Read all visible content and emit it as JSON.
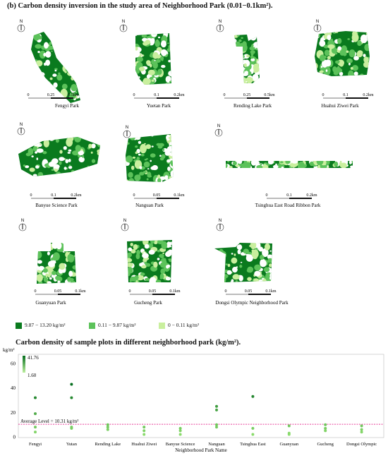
{
  "section_b_title": "(b) Carbon density inversion in the study area of Neighborhood Park (0.01−0.1km²).",
  "north_label": "N",
  "parks": [
    {
      "name": "Fengyi Park",
      "scale_ticks": [
        "0",
        "0.25",
        "0.5km"
      ]
    },
    {
      "name": "Yuetan Park",
      "scale_ticks": [
        "0",
        "0.1",
        "0.2km"
      ]
    },
    {
      "name": "Rending Lake Park",
      "scale_ticks": [
        "0",
        "0.25",
        "0.5km"
      ]
    },
    {
      "name": "Huahui Ziwei Park",
      "scale_ticks": [
        "0",
        "0.1",
        "0.2km"
      ]
    },
    {
      "name": "Banyue Science Park",
      "scale_ticks": [
        "0",
        "0.1",
        "0.2km"
      ]
    },
    {
      "name": "Nanguan Park",
      "scale_ticks": [
        "0",
        "0.05",
        "0.1km"
      ]
    },
    {
      "name": "Tsinghua East Road Ribbon Park",
      "scale_ticks": [
        "0",
        "0.1",
        "0.2km"
      ]
    },
    {
      "name": "Guanyuan Park",
      "scale_ticks": [
        "0",
        "0.05",
        "0.1km"
      ]
    },
    {
      "name": "Gucheng Park",
      "scale_ticks": [
        "0",
        "0.05",
        "0.1km"
      ]
    },
    {
      "name": "Dongsi Olympic Neighborhood Park",
      "scale_ticks": [
        "0",
        "0.05",
        "0.1km"
      ]
    }
  ],
  "map_legend": [
    {
      "label": "9.87 − 13.20 kg/m²",
      "color": "#0a7a1e"
    },
    {
      "label": "0.11 − 9.87 kg/m²",
      "color": "#5cc25a"
    },
    {
      "label": "0 − 0.11 kg/m²",
      "color": "#c9ef9e"
    }
  ],
  "colors": {
    "dark": "#0a7a1e",
    "mid": "#5cc25a",
    "light": "#c9ef9e",
    "reference_line": "#e8409a"
  },
  "chart_section_title": "Carbon density of sample plots in different neighborhood park (kg/m²).",
  "chart_data": {
    "type": "scatter",
    "ylabel": "kg/m²",
    "xlabel": "Neighborhood Park Name",
    "ylim": [
      0,
      65
    ],
    "yticks": [
      0,
      20,
      40,
      60
    ],
    "categories": [
      "Fengyi",
      "Yutan",
      "Rending Lake",
      "Huahui Ziwei",
      "Banyue Science",
      "Nanguan",
      "Tsinghua East",
      "Guanyuan",
      "Gucheng",
      "Dongsi Olympic"
    ],
    "points": [
      {
        "category": "Fengyi",
        "values": [
          32,
          19,
          8,
          4
        ]
      },
      {
        "category": "Yutan",
        "values": [
          43,
          32,
          8,
          7
        ]
      },
      {
        "category": "Rending Lake",
        "values": [
          10,
          8,
          6
        ]
      },
      {
        "category": "Huahui Ziwei",
        "values": [
          8,
          5,
          2
        ]
      },
      {
        "category": "Banyue Science",
        "values": [
          7,
          5,
          2
        ]
      },
      {
        "category": "Nanguan",
        "values": [
          25,
          22,
          10,
          8
        ]
      },
      {
        "category": "Tsinghua East",
        "values": [
          33,
          7,
          2
        ]
      },
      {
        "category": "Guanyuan",
        "values": [
          9,
          3,
          2
        ]
      },
      {
        "category": "Gucheng",
        "values": [
          10,
          7,
          5
        ]
      },
      {
        "category": "Dongsi Olympic",
        "values": [
          9,
          6,
          4
        ]
      }
    ],
    "reference_line": {
      "value": 10.31,
      "label": "Average Level = 10.31 kg/m²"
    },
    "colorbar": {
      "max_label": "41.76",
      "min_label": "1.60",
      "max": 41.76,
      "min": 1.6
    }
  }
}
